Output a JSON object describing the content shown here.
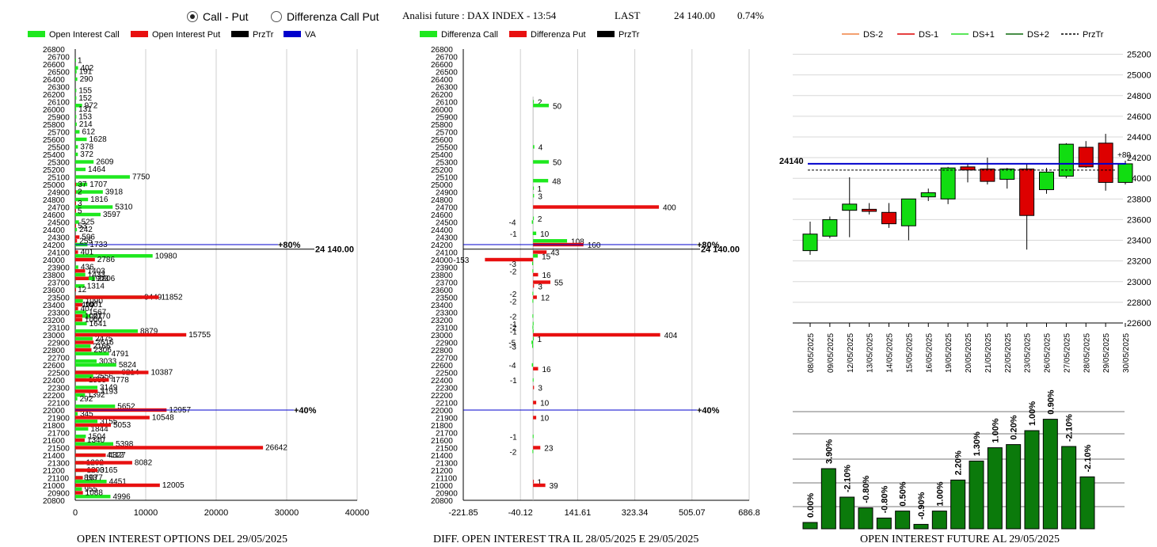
{
  "header": {
    "radio_call_put": "Call - Put",
    "radio_diff": "Differenza Call Put",
    "title": "Analisi future : DAX INDEX - 13:54",
    "last_label": "LAST",
    "last_value": "24 140.00",
    "change": "0.74%"
  },
  "titles": {
    "left": "OPEN INTEREST OPTIONS DEL 29/05/2025",
    "mid": "DIFF. OPEN INTEREST TRA IL 28/05/2025 E 29/05/2025",
    "right": "OPEN INTEREST FUTURE AL 29/05/2025"
  },
  "colors": {
    "call": "#1ee81e",
    "put": "#e81010",
    "przTr": "#000000",
    "va": "#0000cc",
    "candle_up": "#11dd11",
    "candle_down": "#dd0000",
    "bar_green": "#0b7a0b"
  },
  "chart_data": [
    {
      "type": "bar",
      "orientation": "horizontal",
      "legend": [
        "Open Interest Call",
        "Open Interest Put",
        "PrzTr",
        "VA"
      ],
      "y_ticks_outer": [
        "26800",
        "26600",
        "26400",
        "26200",
        "26000",
        "25800",
        "25600",
        "25400",
        "25200",
        "25000",
        "24800",
        "24600",
        "24400",
        "24200",
        "24000",
        "23800",
        "23600",
        "23400",
        "23200",
        "23000",
        "22800",
        "22600",
        "22400",
        "22200",
        "22000",
        "21800",
        "21600",
        "21400",
        "21200",
        "21000",
        "20800"
      ],
      "y_ticks_inner": [
        "26700",
        "26500",
        "26300",
        "26100",
        "25900",
        "25700",
        "25500",
        "25300",
        "25100",
        "24900",
        "24700",
        "24500",
        "24300",
        "24100",
        "23900",
        "23700",
        "23500",
        "23300",
        "23100",
        "22900",
        "22700",
        "22500",
        "22300",
        "22100",
        "21900",
        "21700",
        "21500",
        "21300",
        "21100",
        "20900"
      ],
      "x_ticks": [
        "0",
        "10000",
        "20000",
        "30000",
        "40000"
      ],
      "xlim": [
        0,
        40000
      ],
      "ylim": [
        20800,
        26800
      ],
      "strikes": [
        26650,
        26550,
        26500,
        26450,
        26400,
        26350,
        26300,
        26250,
        26200,
        26150,
        26100,
        26050,
        26000,
        25950,
        25900,
        25850,
        25800,
        25750,
        25700,
        25650,
        25600,
        25550,
        25500,
        25450,
        25400,
        25350,
        25300,
        25250,
        25200,
        25150,
        25100,
        25050,
        25000,
        24950,
        24900,
        24850,
        24800,
        24750,
        24700,
        24650,
        24600,
        24550,
        24500,
        24450,
        24400,
        24350,
        24300,
        24250,
        24200,
        24150,
        24100,
        24050,
        24000,
        23950,
        23900,
        23850,
        23800,
        23750,
        23700,
        23650,
        23600,
        23550,
        23500,
        23450,
        23400,
        23350,
        23300,
        23250,
        23200,
        23150,
        23100,
        23050,
        23000,
        22950,
        22900,
        22850,
        22800,
        22750,
        22700,
        22650,
        22600,
        22550,
        22500,
        22450,
        22400,
        22350,
        22300,
        22250,
        22200,
        22150,
        22100,
        22050,
        22000,
        21950,
        21900,
        21850,
        21800,
        21750,
        21700,
        21650,
        21600,
        21550,
        21500,
        21450,
        21400,
        21350,
        21300,
        21250,
        21200,
        21150,
        21100,
        21050,
        21000,
        20950,
        20900
      ],
      "call": [
        1,
        402,
        191,
        290,
        155,
        152,
        972,
        131,
        153,
        214,
        612,
        1628,
        378,
        372,
        2609,
        1464,
        7750,
        1707,
        3918,
        1816,
        5310,
        3597,
        525,
        242,
        1733,
        10980,
        436,
        1433,
        2806,
        1314,
        9449,
        1090,
        499,
        1567,
        2170,
        1641,
        8879,
        2475,
        2166,
        4791,
        3033,
        5824,
        6214,
        2556,
        1555,
        3149,
        1392,
        292,
        5652,
        345,
        3155,
        1844,
        1504,
        5398,
        4112,
        1202,
        1290,
        893,
        4451,
        955,
        4996
      ],
      "call_strikes": [
        26650,
        26550,
        26500,
        26400,
        26250,
        26150,
        26050,
        26000,
        25900,
        25800,
        25700,
        25600,
        25500,
        25400,
        25300,
        25200,
        25100,
        25000,
        24900,
        24800,
        24700,
        24600,
        24500,
        24400,
        24200,
        24050,
        23900,
        23800,
        23750,
        23650,
        23500,
        23450,
        23400,
        23300,
        23250,
        23150,
        23050,
        22950,
        22850,
        22750,
        22650,
        22600,
        22500,
        22450,
        22400,
        22300,
        22200,
        22150,
        22050,
        21950,
        21850,
        21750,
        21650,
        21550,
        21400,
        21300,
        21200,
        21100,
        21050,
        20950,
        20850
      ],
      "put": [
        37,
        2,
        3,
        5,
        53,
        596,
        255,
        401,
        2786,
        1403,
        1903,
        12,
        11852,
        1001,
        407,
        1007,
        1000,
        15755,
        2616,
        2306,
        10387,
        4778,
        3193,
        12957,
        10548,
        5053,
        1340,
        26642,
        4327,
        8082,
        3165,
        1077,
        12005,
        1088
      ],
      "put_strikes": [
        25000,
        24900,
        24750,
        24650,
        24450,
        24300,
        24250,
        24100,
        24000,
        23850,
        23750,
        23600,
        23500,
        23400,
        23350,
        23250,
        23200,
        23000,
        22900,
        22800,
        22500,
        22400,
        22250,
        22000,
        21900,
        21800,
        21600,
        21500,
        21400,
        21300,
        21200,
        21100,
        21000,
        20900
      ],
      "annotations": [
        {
          "price": 24200,
          "text": "+80%"
        },
        {
          "price": 22000,
          "text": "+40%"
        },
        {
          "price": 24140,
          "text": "24 140.00"
        }
      ]
    },
    {
      "type": "bar",
      "orientation": "horizontal",
      "legend": [
        "Differenza Call",
        "Differenza Put",
        "PrzTr"
      ],
      "x_ticks": [
        "-221.85",
        "-40.12",
        "141.61",
        "323.34",
        "505.07",
        "686.8"
      ],
      "xlim": [
        -221.85,
        686.8
      ],
      "call_diff": [
        {
          "price": 26100,
          "value": 2
        },
        {
          "price": 26050,
          "value": 50
        },
        {
          "price": 25500,
          "value": 4
        },
        {
          "price": 25300,
          "value": 50
        },
        {
          "price": 25050,
          "value": 48
        },
        {
          "price": 24950,
          "value": 1
        },
        {
          "price": 24850,
          "value": 3
        },
        {
          "price": 24550,
          "value": 2
        },
        {
          "price": 24350,
          "value": 10
        },
        {
          "price": 24250,
          "value": 108
        },
        {
          "price": 24050,
          "value": 15
        },
        {
          "price": 22950,
          "value": 1
        }
      ],
      "call_diff_neg": [
        {
          "price": 24500,
          "value": -4
        },
        {
          "price": 24350,
          "value": -1
        },
        {
          "price": 23950,
          "value": -3
        },
        {
          "price": 23850,
          "value": -2
        },
        {
          "price": 23550,
          "value": -2
        },
        {
          "price": 23450,
          "value": -2
        },
        {
          "price": 23250,
          "value": -2
        },
        {
          "price": 23150,
          "value": -1
        },
        {
          "price": 23100,
          "value": -2
        },
        {
          "price": 23050,
          "value": -1
        },
        {
          "price": 22900,
          "value": -5
        },
        {
          "price": 22850,
          "value": -3
        },
        {
          "price": 22600,
          "value": -4
        },
        {
          "price": 22400,
          "value": -1
        },
        {
          "price": 21650,
          "value": -1
        },
        {
          "price": 21450,
          "value": -2
        }
      ],
      "put_diff": [
        {
          "price": 24700,
          "value": 400
        },
        {
          "price": 24200,
          "value": 160
        },
        {
          "price": 24100,
          "value": 43
        },
        {
          "price": 24000,
          "value": -153
        },
        {
          "price": 23800,
          "value": 16
        },
        {
          "price": 23700,
          "value": 55
        },
        {
          "price": 23650,
          "value": 3
        },
        {
          "price": 23500,
          "value": 12
        },
        {
          "price": 23000,
          "value": 404
        },
        {
          "price": 22550,
          "value": 16
        },
        {
          "price": 22300,
          "value": 3
        },
        {
          "price": 22100,
          "value": 10
        },
        {
          "price": 21900,
          "value": 10
        },
        {
          "price": 21500,
          "value": 23
        },
        {
          "price": 21050,
          "value": 1
        },
        {
          "price": 21000,
          "value": 39
        }
      ],
      "annotations": [
        {
          "price": 24200,
          "text": "+80%"
        },
        {
          "price": 22000,
          "text": "+40%"
        },
        {
          "price": 24140,
          "text": "24 140.00"
        }
      ]
    },
    {
      "type": "candlestick",
      "legend": [
        "DS-2",
        "DS-1",
        "DS+1",
        "DS+2",
        "PrzTr"
      ],
      "dates": [
        "08/05/2025",
        "09/05/2025",
        "12/05/2025",
        "13/05/2025",
        "14/05/2025",
        "15/05/2025",
        "16/05/2025",
        "19/05/2025",
        "20/05/2025",
        "21/05/2025",
        "22/05/2025",
        "23/05/2025",
        "26/05/2025",
        "27/05/2025",
        "28/05/2025",
        "29/05/2025",
        "30/05/2025"
      ],
      "y_ticks": [
        "25200",
        "25000",
        "24800",
        "24600",
        "24400",
        "24200",
        "24000",
        "23800",
        "23600",
        "23400",
        "23200",
        "23000",
        "22800",
        "22600"
      ],
      "ylim": [
        22600,
        25250
      ],
      "candles": [
        {
          "o": 23300,
          "h": 23580,
          "l": 23260,
          "c": 23460
        },
        {
          "o": 23440,
          "h": 23630,
          "l": 23420,
          "c": 23600
        },
        {
          "o": 23690,
          "h": 24010,
          "l": 23430,
          "c": 23750
        },
        {
          "o": 23700,
          "h": 23760,
          "l": 23650,
          "c": 23680
        },
        {
          "o": 23670,
          "h": 23760,
          "l": 23520,
          "c": 23560
        },
        {
          "o": 23540,
          "h": 23800,
          "l": 23400,
          "c": 23800
        },
        {
          "o": 23820,
          "h": 23900,
          "l": 23780,
          "c": 23860
        },
        {
          "o": 23800,
          "h": 24110,
          "l": 23750,
          "c": 24100
        },
        {
          "o": 24110,
          "h": 24140,
          "l": 23960,
          "c": 24080
        },
        {
          "o": 24090,
          "h": 24200,
          "l": 23940,
          "c": 23970
        },
        {
          "o": 23990,
          "h": 24100,
          "l": 23900,
          "c": 24090
        },
        {
          "o": 24090,
          "h": 24140,
          "l": 23310,
          "c": 23640
        },
        {
          "o": 23890,
          "h": 24100,
          "l": 23850,
          "c": 24060
        },
        {
          "o": 24020,
          "h": 24340,
          "l": 24000,
          "c": 24330
        },
        {
          "o": 24300,
          "h": 24360,
          "l": 24100,
          "c": 24110
        },
        {
          "o": 24340,
          "h": 24430,
          "l": 23880,
          "c": 23960
        },
        {
          "o": 23960,
          "h": 24170,
          "l": 23940,
          "c": 24140
        }
      ],
      "przTr": 24140,
      "przTr_label": "24140",
      "va_label": "+80"
    },
    {
      "type": "bar",
      "values_pct": [
        "0.00%",
        "3.90%",
        "-2.10%",
        "-0.80%",
        "-0.80%",
        "0.50%",
        "-0.90%",
        "1.00%",
        "2.20%",
        "1.30%",
        "1.00%",
        "0.20%",
        "1.00%",
        "0.90%",
        "-2.10%",
        "-2.10%"
      ],
      "heights": [
        1,
        9.5,
        5,
        3.3,
        1.7,
        2.8,
        0.7,
        2.8,
        7.7,
        10.7,
        12.8,
        13.3,
        15.5,
        17.3,
        13.0,
        8.2
      ]
    }
  ]
}
